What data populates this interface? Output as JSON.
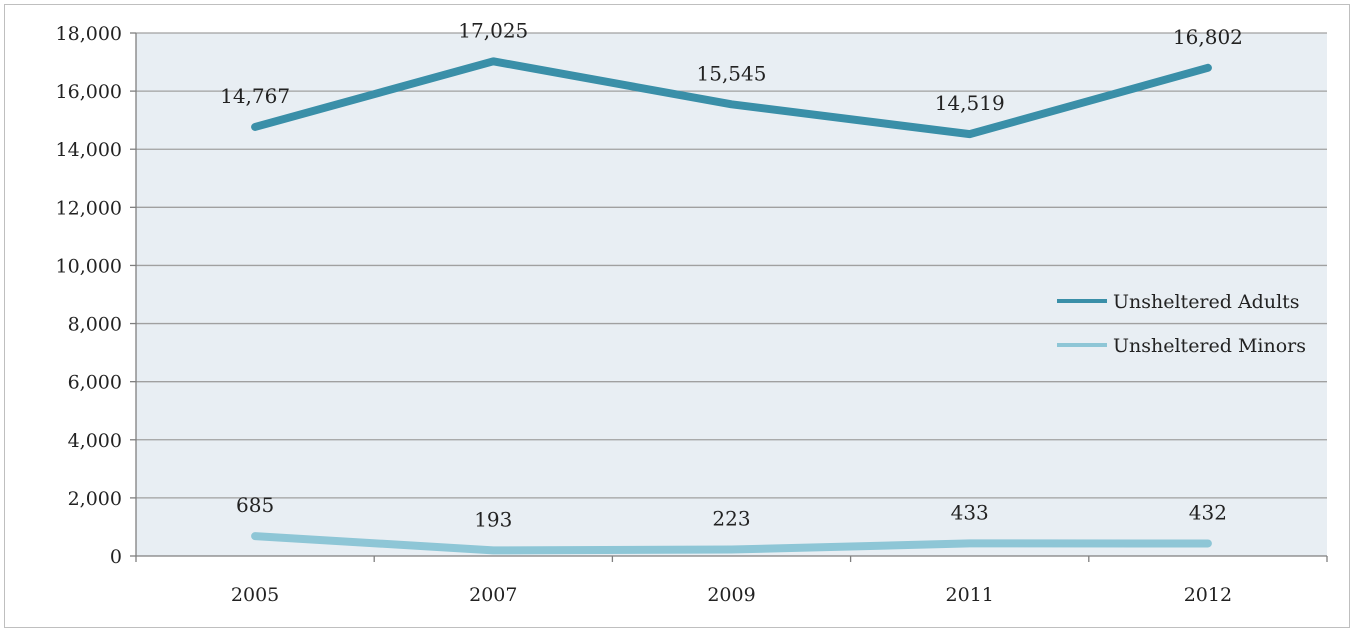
{
  "chart_data": {
    "type": "line",
    "categories": [
      "2005",
      "2007",
      "2009",
      "2011",
      "2012"
    ],
    "series": [
      {
        "name": "Unsheltered Adults",
        "values": [
          14767,
          17025,
          15545,
          14519,
          16802
        ],
        "labels": [
          "14,767",
          "17,025",
          "15,545",
          "14,519",
          "16,802"
        ],
        "color": "#3a8fa8"
      },
      {
        "name": "Unsheltered Minors",
        "values": [
          685,
          193,
          223,
          433,
          432
        ],
        "labels": [
          "685",
          "193",
          "223",
          "433",
          "432"
        ],
        "color": "#8ec6d6"
      }
    ],
    "title": "",
    "xlabel": "",
    "ylabel": "",
    "ylim": [
      0,
      18000
    ],
    "yticks": [
      0,
      2000,
      4000,
      6000,
      8000,
      10000,
      12000,
      14000,
      16000,
      18000
    ],
    "ytick_labels": [
      "0",
      "2,000",
      "4,000",
      "6,000",
      "8,000",
      "10,000",
      "12,000",
      "14,000",
      "16,000",
      "18,000"
    ],
    "grid": true,
    "legend_position": "right",
    "plot_background": "#e8eef3",
    "gridline_color": "#a0a0a0"
  }
}
